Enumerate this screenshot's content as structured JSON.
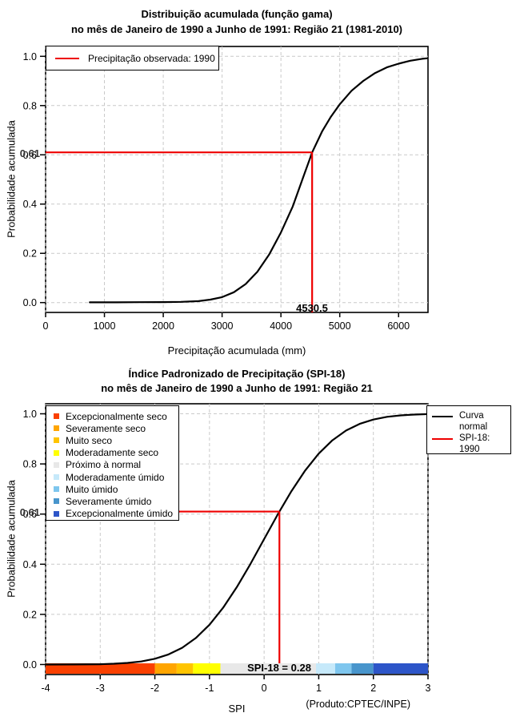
{
  "ui": {
    "background": "#FFFFFF",
    "reference_color": "#EE0000",
    "grid_color": "#C9C9C9",
    "footnote": "(Produto:CPTEC/INPE)"
  },
  "chart_data": [
    {
      "type": "line",
      "title": "Distribuição acumulada (função gama)",
      "subtitle": "no mês de Janeiro de 1990 a Junho de 1991: Região 21 (1981-2010)",
      "xlabel": "Precipitação acumulada (mm)",
      "ylabel": "Probabilidade acumulada",
      "xlim": [
        0,
        6500
      ],
      "ylim": [
        -0.04,
        1.04
      ],
      "x_ticks": [
        0,
        1000,
        2000,
        3000,
        4000,
        5000,
        6000
      ],
      "y_ticks": [
        0.0,
        0.2,
        0.4,
        0.6,
        0.8,
        1.0
      ],
      "y_tick_labels": [
        "0.0",
        "0.2",
        "0.4",
        "0.6",
        "0.8",
        "1.0"
      ],
      "grid": true,
      "legend": {
        "position": "top-left",
        "items": [
          {
            "label": "Precipitação observada: 1990",
            "color": "#EE0000",
            "type": "line"
          }
        ]
      },
      "reference": {
        "x": 4530.5,
        "y": 0.61,
        "x_label": "4530.5",
        "y_label": "0.61"
      },
      "series": [
        {
          "name": "Distribuição gama acumulada",
          "color": "#000000",
          "points": [
            [
              750,
              0.001
            ],
            [
              1200,
              0.001
            ],
            [
              1600,
              0.0015
            ],
            [
              2000,
              0.002
            ],
            [
              2300,
              0.003
            ],
            [
              2600,
              0.006
            ],
            [
              2800,
              0.012
            ],
            [
              3000,
              0.022
            ],
            [
              3200,
              0.042
            ],
            [
              3400,
              0.075
            ],
            [
              3600,
              0.125
            ],
            [
              3800,
              0.195
            ],
            [
              4000,
              0.285
            ],
            [
              4200,
              0.39
            ],
            [
              4365,
              0.5
            ],
            [
              4530.5,
              0.61
            ],
            [
              4700,
              0.695
            ],
            [
              4850,
              0.755
            ],
            [
              5000,
              0.805
            ],
            [
              5200,
              0.86
            ],
            [
              5400,
              0.9
            ],
            [
              5600,
              0.932
            ],
            [
              5800,
              0.955
            ],
            [
              6000,
              0.97
            ],
            [
              6200,
              0.982
            ],
            [
              6400,
              0.99
            ],
            [
              6480,
              0.992
            ]
          ]
        }
      ]
    },
    {
      "type": "line",
      "title": "Índice Padronizado de Precipitação (SPI-18)",
      "subtitle": "no mês de Janeiro de 1990 a Junho de 1991: Região 21",
      "xlabel": "SPI",
      "ylabel": "Probabilidade acumulada",
      "xlim": [
        -4,
        3
      ],
      "ylim": [
        -0.04,
        1.04
      ],
      "x_ticks": [
        -4,
        -3,
        -2,
        -1,
        0,
        1,
        2,
        3
      ],
      "y_ticks": [
        0.0,
        0.2,
        0.4,
        0.6,
        0.8,
        1.0
      ],
      "y_tick_labels": [
        "0.0",
        "0.2",
        "0.4",
        "0.6",
        "0.8",
        "1.0"
      ],
      "grid": true,
      "category_legend": {
        "position": "top-left",
        "items": [
          {
            "label": "Excepcionalmente seco",
            "color": "#FA4000"
          },
          {
            "label": "Severamente seco",
            "color": "#FFA500"
          },
          {
            "label": "Muito seco",
            "color": "#FFC400"
          },
          {
            "label": "Moderadamente seco",
            "color": "#FFFF00"
          },
          {
            "label": "Próximo à normal",
            "color": "#E8E8E8"
          },
          {
            "label": "Moderadamente úmido",
            "color": "#C6E9FA"
          },
          {
            "label": "Muito úmido",
            "color": "#7EC6EE"
          },
          {
            "label": "Severamente úmido",
            "color": "#4895CC"
          },
          {
            "label": "Excepcionalmente úmido",
            "color": "#2D55C8"
          }
        ]
      },
      "line_legend": {
        "position": "top-right",
        "items": [
          {
            "label": "Curva normal",
            "lines": [
              "Curva",
              "normal"
            ],
            "color": "#000000"
          },
          {
            "label": "SPI-18: 1990",
            "lines": [
              "SPI-18: 1990"
            ],
            "color": "#EE0000"
          }
        ]
      },
      "reference": {
        "x": 0.28,
        "y": 0.61,
        "x_label": "SPI-18 = 0.28",
        "y_label": "0.61"
      },
      "colorbar": {
        "boundaries": [
          -4,
          -2,
          -1.6,
          -1.3,
          -0.8,
          0.95,
          1.3,
          1.6,
          2,
          3
        ],
        "colors": [
          "#FA4000",
          "#FFA500",
          "#FFC400",
          "#FFFF00",
          "#E8E8E8",
          "#C6E9FA",
          "#7EC6EE",
          "#4895CC",
          "#2D55C8"
        ]
      },
      "footnote": "(Produto:CPTEC/INPE)",
      "series": [
        {
          "name": "Curva normal",
          "color": "#000000",
          "points": [
            [
              -4,
              0.0001
            ],
            [
              -3.5,
              0.0002
            ],
            [
              -3,
              0.0013
            ],
            [
              -2.75,
              0.003
            ],
            [
              -2.5,
              0.0062
            ],
            [
              -2.25,
              0.0122
            ],
            [
              -2,
              0.0228
            ],
            [
              -1.75,
              0.0401
            ],
            [
              -1.5,
              0.0668
            ],
            [
              -1.25,
              0.1056
            ],
            [
              -1,
              0.1587
            ],
            [
              -0.75,
              0.2266
            ],
            [
              -0.5,
              0.3085
            ],
            [
              -0.25,
              0.4013
            ],
            [
              0,
              0.5
            ],
            [
              0.25,
              0.5987
            ],
            [
              0.28,
              0.6103
            ],
            [
              0.5,
              0.6915
            ],
            [
              0.75,
              0.7734
            ],
            [
              1,
              0.8413
            ],
            [
              1.25,
              0.8944
            ],
            [
              1.5,
              0.9332
            ],
            [
              1.75,
              0.9599
            ],
            [
              2,
              0.9772
            ],
            [
              2.25,
              0.9878
            ],
            [
              2.5,
              0.9938
            ],
            [
              2.75,
              0.997
            ],
            [
              3,
              0.9987
            ]
          ]
        }
      ]
    }
  ]
}
